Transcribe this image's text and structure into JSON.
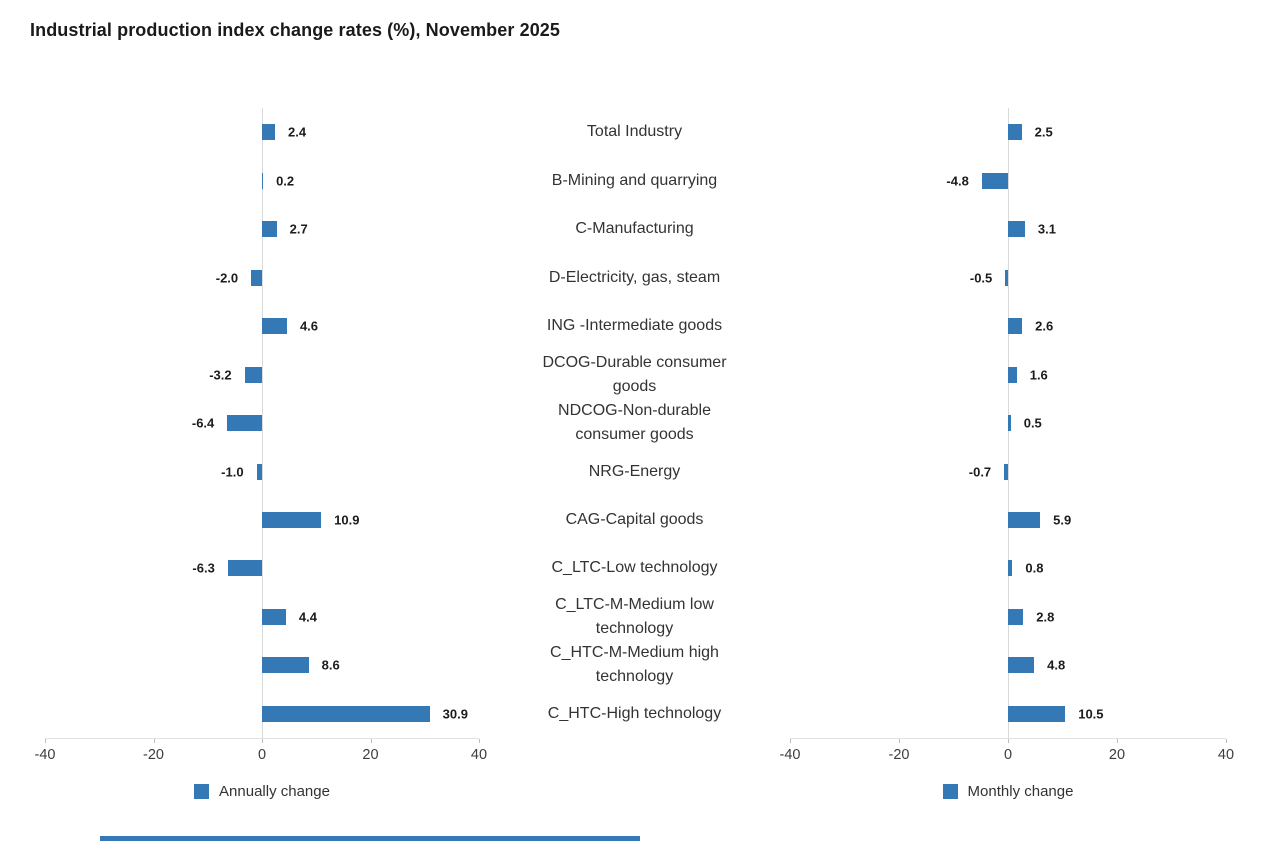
{
  "title": "Industrial production index change rates (%), November 2025",
  "chart_data": {
    "type": "bar",
    "orientation": "horizontal",
    "title": "Industrial production index change rates (%), November 2025",
    "categories": [
      "Total Industry",
      "B-Mining and quarrying",
      "C-Manufacturing",
      "D-Electricity, gas, steam",
      "ING -Intermediate goods",
      "DCOG-Durable consumer goods",
      "NDCOG-Non-durable consumer goods",
      "NRG-Energy",
      "CAG-Capital goods",
      "C_LTC-Low technology",
      "C_LTC-M-Medium low technology",
      "C_HTC-M-Medium high technology",
      "C_HTC-High technology"
    ],
    "series": [
      {
        "name": "Annually change",
        "values": [
          2.4,
          0.2,
          2.7,
          -2.0,
          4.6,
          -3.2,
          -6.4,
          -1.0,
          10.9,
          -6.3,
          4.4,
          8.6,
          30.9
        ]
      },
      {
        "name": "Monthly change",
        "values": [
          2.5,
          -4.8,
          3.1,
          -0.5,
          2.6,
          1.6,
          0.5,
          -0.7,
          5.9,
          0.8,
          2.8,
          4.8,
          10.5
        ]
      }
    ],
    "xlim": [
      -40,
      40
    ],
    "x_ticks": [
      -40,
      -20,
      0,
      20,
      40
    ],
    "value_labels": true,
    "legend_position": "bottom",
    "colors": {
      "bar": "#3478b6",
      "zero_gridline": "#d9d9d9",
      "axis_line": "#e2e2e2"
    }
  }
}
